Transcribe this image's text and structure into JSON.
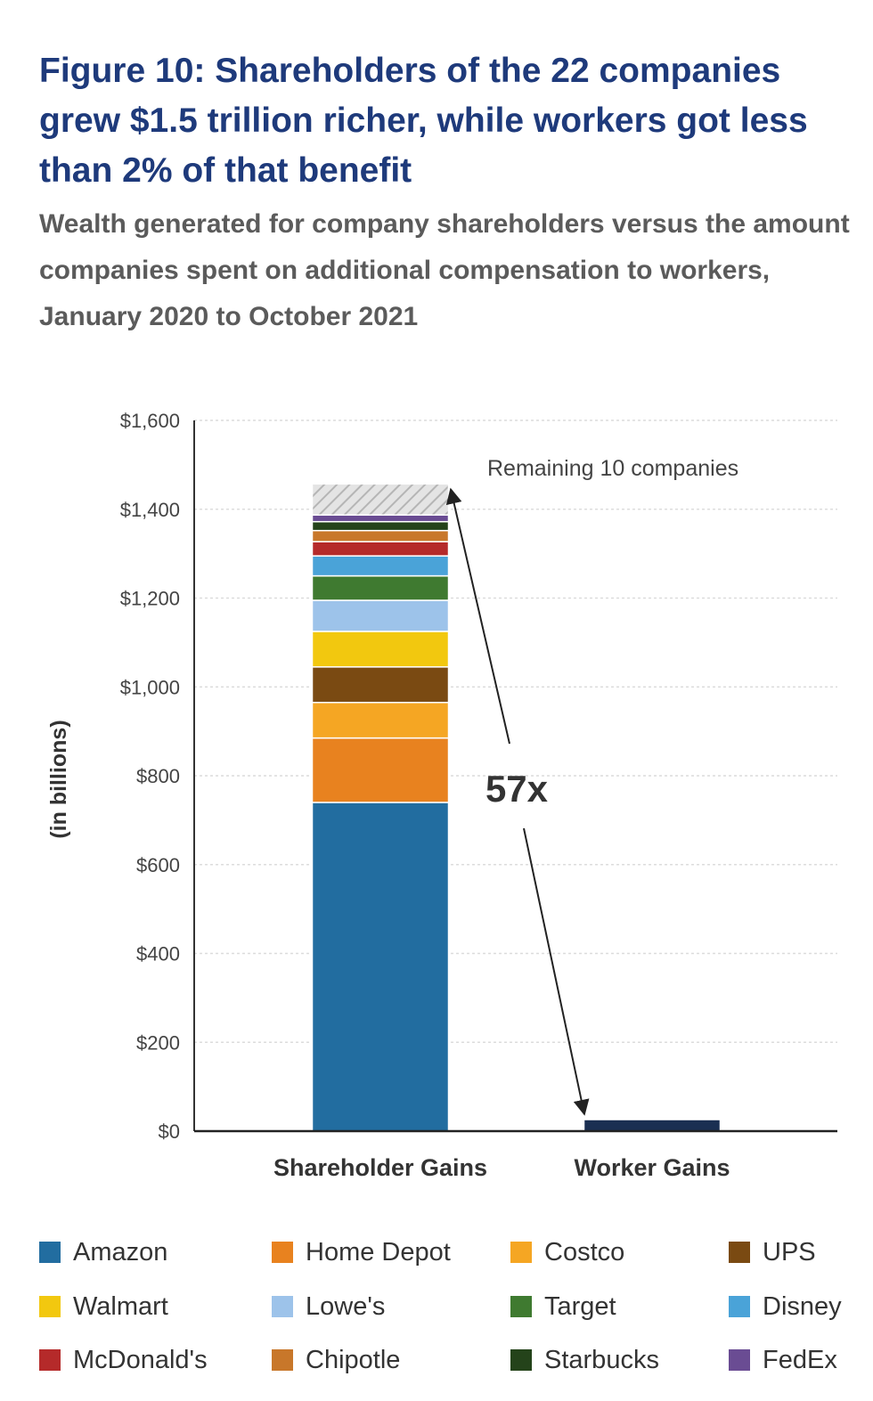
{
  "title": "Figure 10: Shareholders of the 22 companies grew $1.5 trillion richer, while workers got less than 2% of that benefit",
  "subtitle": "Wealth generated for company shareholders versus the amount companies spent on additional compensation to workers, January 2020 to October 2021",
  "chart_data": {
    "type": "bar",
    "stacked": true,
    "categories": [
      "Shareholder Gains",
      "Worker Gains"
    ],
    "ylabel": "(in billions)",
    "ylim": [
      0,
      1600
    ],
    "yticks": [
      0,
      200,
      400,
      600,
      800,
      1000,
      1200,
      1400,
      1600
    ],
    "ytick_labels": [
      "$0",
      "$200",
      "$400",
      "$600",
      "$800",
      "$1,000",
      "$1,200",
      "$1,400",
      "$1,600"
    ],
    "grid": true,
    "series": [
      {
        "name": "Amazon",
        "color": "#226da0",
        "values": [
          740,
          0
        ]
      },
      {
        "name": "Home Depot",
        "color": "#e8821f",
        "values": [
          145,
          0
        ]
      },
      {
        "name": "Costco",
        "color": "#f5a623",
        "values": [
          80,
          0
        ]
      },
      {
        "name": "UPS",
        "color": "#7a4a12",
        "values": [
          80,
          0
        ]
      },
      {
        "name": "Walmart",
        "color": "#f2c80f",
        "values": [
          80,
          0
        ]
      },
      {
        "name": "Lowe's",
        "color": "#9dc3ea",
        "values": [
          70,
          0
        ]
      },
      {
        "name": "Target",
        "color": "#3f7a30",
        "values": [
          55,
          0
        ]
      },
      {
        "name": "Disney",
        "color": "#4aa3d8",
        "values": [
          45,
          0
        ]
      },
      {
        "name": "McDonald's",
        "color": "#b52a2a",
        "values": [
          32,
          0
        ]
      },
      {
        "name": "Chipotle",
        "color": "#c8772a",
        "values": [
          25,
          0
        ]
      },
      {
        "name": "Starbucks",
        "color": "#24431a",
        "values": [
          20,
          0
        ]
      },
      {
        "name": "FedEx",
        "color": "#6a4c93",
        "values": [
          15,
          0
        ]
      },
      {
        "name": "Remaining 10 companies",
        "color": "#d6d6d6",
        "pattern": "hatched",
        "values": [
          70,
          0
        ]
      },
      {
        "name": "Worker Gains",
        "color": "#1a2f52",
        "values": [
          0,
          26
        ]
      }
    ],
    "annotations": [
      {
        "text": "Remaining 10 companies"
      },
      {
        "text": "57x"
      }
    ],
    "legend": {
      "placement": "bottom",
      "items": [
        "Amazon",
        "Home Depot",
        "Costco",
        "UPS",
        "Walmart",
        "Lowe's",
        "Target",
        "Disney",
        "McDonald's",
        "Chipotle",
        "Starbucks",
        "FedEx"
      ]
    }
  }
}
